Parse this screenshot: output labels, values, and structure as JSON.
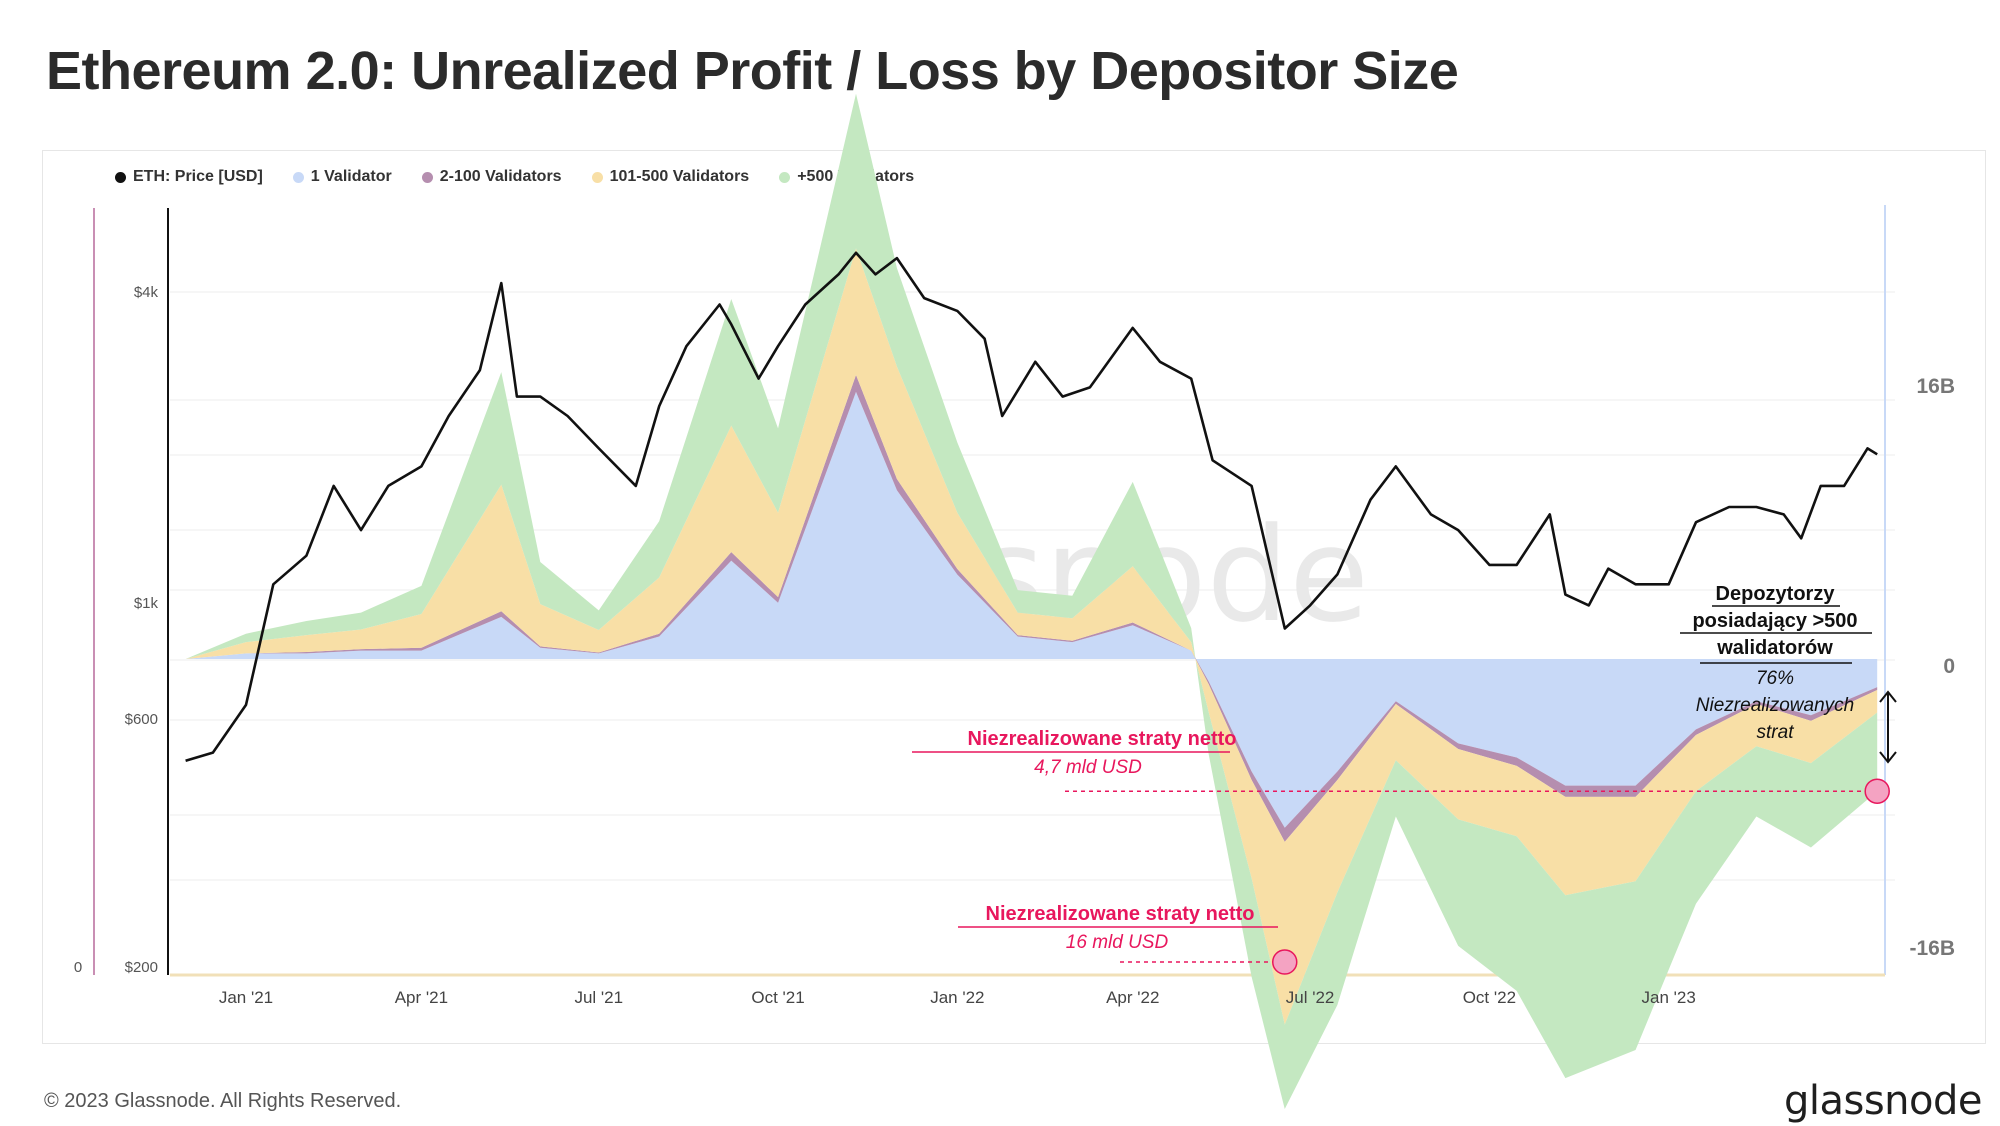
{
  "title": "Ethereum 2.0: Unrealized Profit / Loss by Depositor Size",
  "footer": {
    "copyright": "© 2023 Glassnode. All Rights Reserved.",
    "brand": "glassnode"
  },
  "chart_data": {
    "type": "area",
    "title": "Ethereum 2.0: Unrealized Profit / Loss by Depositor Size",
    "legend_position": "top-left",
    "grid": true,
    "x_ticks": [
      "Jan '21",
      "Apr '21",
      "Jul '21",
      "Oct '21",
      "Jan '22",
      "Apr '22",
      "Jul '22",
      "Oct '22",
      "Jan '23"
    ],
    "left_axis": {
      "scale": "log",
      "ticks": [
        "$4k",
        "$1k",
        "$600",
        "$200"
      ],
      "extra_tick": "0"
    },
    "right_axis": {
      "ticks": [
        "16B",
        "0",
        "-16B"
      ],
      "range": [
        -16,
        16
      ],
      "unit": "B USD"
    },
    "price_series": {
      "name": "ETH: Price [USD]",
      "color": "#111111",
      "x": [
        "2020-12-01",
        "2020-12-15",
        "2021-01-01",
        "2021-01-15",
        "2021-02-01",
        "2021-02-15",
        "2021-03-01",
        "2021-03-15",
        "2021-04-01",
        "2021-04-15",
        "2021-05-01",
        "2021-05-12",
        "2021-05-20",
        "2021-06-01",
        "2021-06-15",
        "2021-07-01",
        "2021-07-20",
        "2021-08-01",
        "2021-08-15",
        "2021-09-01",
        "2021-09-07",
        "2021-09-21",
        "2021-10-01",
        "2021-10-15",
        "2021-11-01",
        "2021-11-10",
        "2021-11-20",
        "2021-12-01",
        "2021-12-15",
        "2022-01-01",
        "2022-01-15",
        "2022-01-24",
        "2022-02-10",
        "2022-02-24",
        "2022-03-10",
        "2022-04-01",
        "2022-04-15",
        "2022-05-01",
        "2022-05-12",
        "2022-06-01",
        "2022-06-18",
        "2022-07-01",
        "2022-07-15",
        "2022-08-01",
        "2022-08-14",
        "2022-09-01",
        "2022-09-15",
        "2022-10-01",
        "2022-10-15",
        "2022-11-01",
        "2022-11-09",
        "2022-11-21",
        "2022-12-01",
        "2022-12-15",
        "2023-01-01",
        "2023-01-15",
        "2023-02-01",
        "2023-02-15",
        "2023-03-01",
        "2023-03-10",
        "2023-03-20",
        "2023-04-01",
        "2023-04-13",
        "2023-04-18"
      ],
      "y": [
        580,
        600,
        730,
        1200,
        1350,
        1800,
        1500,
        1800,
        1950,
        2400,
        2900,
        4150,
        2600,
        2600,
        2400,
        2100,
        1800,
        2500,
        3200,
        3800,
        3500,
        2800,
        3200,
        3800,
        4300,
        4700,
        4300,
        4600,
        3900,
        3700,
        3300,
        2400,
        3000,
        2600,
        2700,
        3450,
        3000,
        2800,
        2000,
        1800,
        1000,
        1100,
        1250,
        1700,
        1950,
        1600,
        1500,
        1300,
        1300,
        1600,
        1150,
        1100,
        1280,
        1200,
        1200,
        1550,
        1650,
        1650,
        1600,
        1450,
        1800,
        1800,
        2100,
        2050
      ]
    },
    "series": [
      {
        "name": "1 Validator",
        "color": "#c8d9f7"
      },
      {
        "name": "2-100 Validators",
        "color": "#b58eaf"
      },
      {
        "name": "101-500 Validators",
        "color": "#f8dfa6"
      },
      {
        "name": "+500 Validators",
        "color": "#c4e8c1"
      }
    ],
    "net_unrealized_pl": {
      "x": [
        "2020-12-01",
        "2021-01-01",
        "2021-02-01",
        "2021-03-01",
        "2021-04-01",
        "2021-05-12",
        "2021-06-01",
        "2021-07-01",
        "2021-08-01",
        "2021-09-07",
        "2021-10-01",
        "2021-11-10",
        "2021-12-01",
        "2022-01-01",
        "2022-02-01",
        "2022-03-01",
        "2022-04-01",
        "2022-05-01",
        "2022-05-10",
        "2022-06-01",
        "2022-06-18",
        "2022-07-15",
        "2022-08-14",
        "2022-09-15",
        "2022-10-15",
        "2022-11-09",
        "2022-12-15",
        "2023-01-15",
        "2023-02-15",
        "2023-03-15",
        "2023-04-18"
      ],
      "one_validator": [
        0,
        0.2,
        0.2,
        0.3,
        0.3,
        1.5,
        0.4,
        0.2,
        0.8,
        3.5,
        2.0,
        9.5,
        6.0,
        3.0,
        0.8,
        0.6,
        1.2,
        0.3,
        -0.8,
        -4.0,
        -6.0,
        -4.0,
        -1.5,
        -3.0,
        -3.5,
        -4.5,
        -4.5,
        -2.5,
        -1.5,
        -2.0,
        -1.0
      ],
      "two_to_100": [
        0,
        0.0,
        0.05,
        0.05,
        0.1,
        0.2,
        0.05,
        0.03,
        0.1,
        0.3,
        0.2,
        0.6,
        0.4,
        0.2,
        0.05,
        0.05,
        0.1,
        0.0,
        -0.1,
        -0.3,
        -0.5,
        -0.3,
        -0.1,
        -0.2,
        -0.3,
        -0.4,
        -0.4,
        -0.2,
        -0.1,
        -0.2,
        -0.1
      ],
      "one01_to_500": [
        0,
        0.4,
        0.6,
        0.7,
        1.2,
        4.5,
        1.5,
        0.8,
        2.0,
        4.5,
        3.0,
        4.5,
        4.0,
        2.0,
        0.8,
        0.8,
        2.0,
        0.3,
        -1.0,
        -3.5,
        -6.5,
        -4.0,
        -2.0,
        -2.5,
        -2.5,
        -3.5,
        -3.0,
        -2.0,
        -1.5,
        -1.5,
        -0.8
      ],
      "plus500": [
        0,
        0.3,
        0.5,
        0.6,
        1.0,
        4.0,
        1.5,
        0.7,
        2.0,
        4.5,
        3.0,
        5.5,
        3.5,
        2.5,
        0.8,
        0.8,
        3.0,
        0.5,
        -1.5,
        -3.5,
        -3.0,
        -4.0,
        -2.0,
        -4.5,
        -5.5,
        -6.5,
        -6.0,
        -4.0,
        -2.5,
        -3.0,
        -2.8
      ]
    },
    "annotations": [
      {
        "title": "Niezrealizowane straty netto",
        "value": "4,7 mld USD",
        "x": "2023-04-18",
        "y": -4.7
      },
      {
        "title": "Niezrealizowane straty netto",
        "value": "16 mld USD",
        "x": "2022-06-18",
        "y": -16
      },
      {
        "title_lines": [
          "Depozytorzy",
          "posiadający >500",
          "walidatorów"
        ],
        "body_lines": [
          "76%",
          "Niezrealizowanych",
          "strat"
        ]
      }
    ],
    "watermark": "glassnode"
  }
}
